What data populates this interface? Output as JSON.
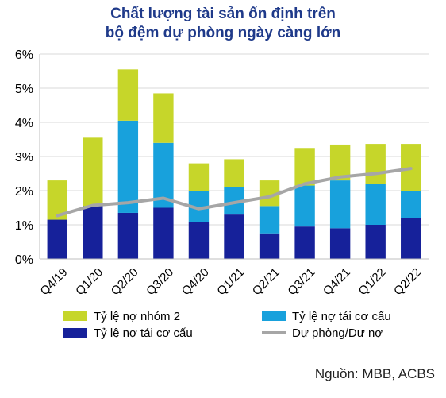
{
  "title_lines": [
    "Chất lượng tài sản ổn định trên",
    "bộ đệm dự phòng ngày càng lớn"
  ],
  "source": "Nguồn: MBB, ACBS",
  "colors": {
    "nhom2": "#c6d62a",
    "restructured_light": "#18a1dc",
    "restructured_dark": "#16219a",
    "provision": "#a6a6a6"
  },
  "chart_data": {
    "type": "bar",
    "stacked": true,
    "categories": [
      "Q4/19",
      "Q1/20",
      "Q2/20",
      "Q3/20",
      "Q4/20",
      "Q1/21",
      "Q2/21",
      "Q3/21",
      "Q4/21",
      "Q1/22",
      "Q2/22"
    ],
    "ylim": [
      0,
      6
    ],
    "yticks": [
      "0%",
      "1%",
      "2%",
      "3%",
      "4%",
      "5%",
      "6%"
    ],
    "grid": true,
    "series": [
      {
        "name": "Tỷ lệ nợ tái cơ cấu",
        "kind": "bar",
        "color": "#16219a",
        "values": [
          1.15,
          1.55,
          1.35,
          1.5,
          1.08,
          1.3,
          0.75,
          0.95,
          0.9,
          1.0,
          1.2
        ]
      },
      {
        "name": "Tỷ lệ nợ tái cơ cấu",
        "kind": "bar",
        "color": "#18a1dc",
        "values": [
          0.0,
          0.0,
          2.7,
          1.9,
          0.9,
          0.8,
          0.8,
          1.2,
          1.4,
          1.2,
          0.8
        ]
      },
      {
        "name": "Tỷ lệ nợ nhóm 2",
        "kind": "bar",
        "color": "#c6d62a",
        "values": [
          1.15,
          2.0,
          1.5,
          1.45,
          0.82,
          0.82,
          0.75,
          1.1,
          1.05,
          1.17,
          1.37
        ]
      },
      {
        "name": "Dự phòng/Dư nợ",
        "kind": "line",
        "color": "#a6a6a6",
        "values": [
          1.27,
          1.57,
          1.65,
          1.78,
          1.47,
          1.65,
          1.82,
          2.2,
          2.4,
          2.5,
          2.65
        ]
      }
    ],
    "legend": [
      {
        "label": "Tỷ lệ nợ nhóm 2",
        "color": "#c6d62a",
        "shape": "box"
      },
      {
        "label": "Tỷ lệ nợ tái cơ cấu",
        "color": "#18a1dc",
        "shape": "box"
      },
      {
        "label": "Tỷ lệ nợ tái cơ cấu",
        "color": "#16219a",
        "shape": "box"
      },
      {
        "label": "Dự phòng/Dư nợ",
        "color": "#a6a6a6",
        "shape": "line"
      }
    ],
    "legend_placement": "bottom"
  }
}
